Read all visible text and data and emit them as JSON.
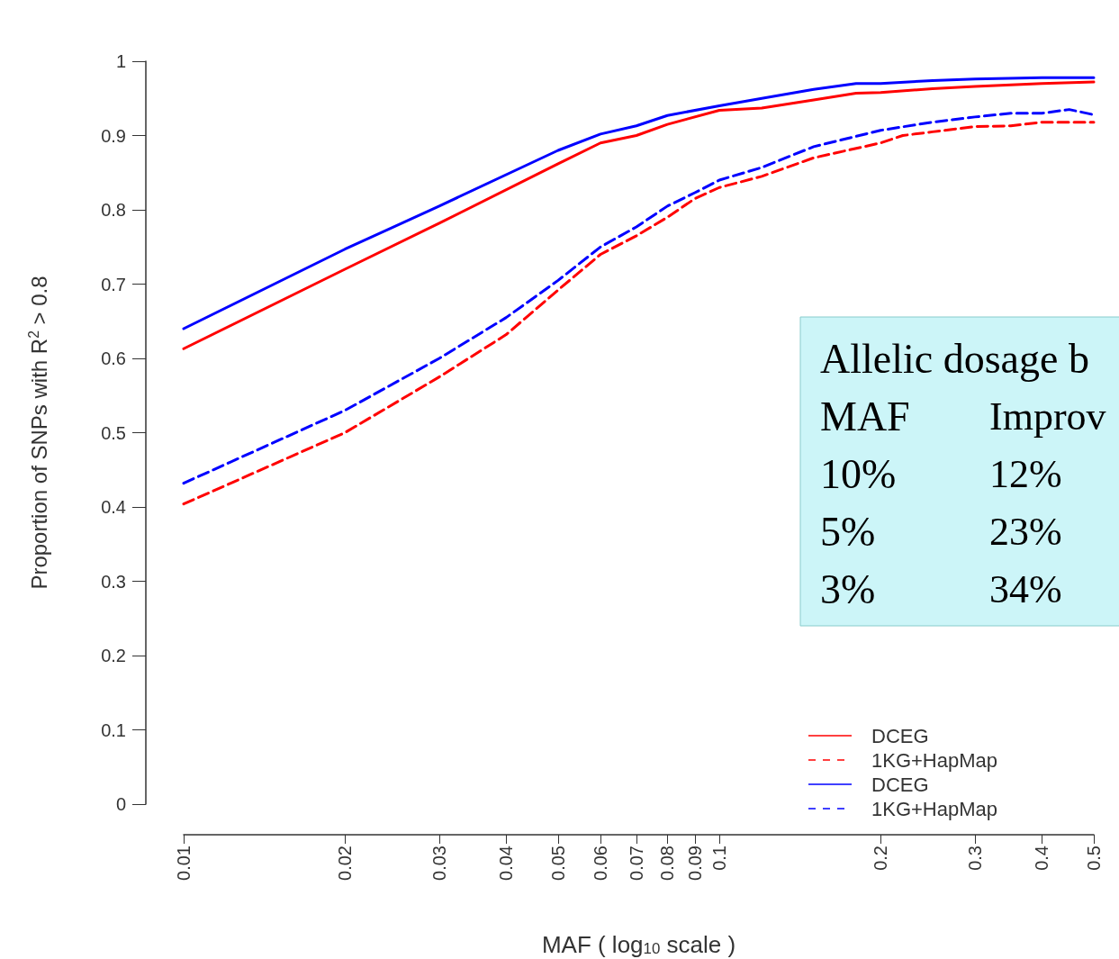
{
  "chart_data": {
    "type": "line",
    "xlabel": "MAF ( log$_{10}$ scale )",
    "ylabel": "Proportion of SNPs with R$^{2}$ > 0.8",
    "log": "x",
    "xlim": [
      0.01,
      0.5
    ],
    "xticks": [
      0.01,
      0.02,
      0.03,
      0.04,
      0.05,
      0.06,
      0.07,
      0.08,
      0.09,
      0.1,
      0.2,
      0.3,
      0.4,
      0.5
    ],
    "ylim": [
      0,
      1
    ],
    "yticks": [
      0,
      0.1,
      0.2,
      0.3,
      0.4,
      0.5,
      0.6,
      0.7,
      0.8,
      0.9,
      1
    ],
    "grid": false,
    "marker": "none",
    "legend": "bottom right",
    "series": [
      {
        "name": "DCEG",
        "color": "#ff0000",
        "line_style": "solid",
        "x": [
          0.01,
          0.02,
          0.03,
          0.05,
          0.06,
          0.07,
          0.08,
          0.1,
          0.12,
          0.15,
          0.18,
          0.2,
          0.25,
          0.3,
          0.4,
          0.5
        ],
        "values": [
          0.613,
          0.72,
          0.782,
          0.862,
          0.89,
          0.9,
          0.915,
          0.934,
          0.937,
          0.948,
          0.957,
          0.958,
          0.963,
          0.966,
          0.97,
          0.972
        ]
      },
      {
        "name": "1KG+HapMap",
        "color": "#ff0000",
        "line_style": "dashed",
        "x": [
          0.01,
          0.02,
          0.03,
          0.04,
          0.05,
          0.06,
          0.07,
          0.08,
          0.09,
          0.1,
          0.12,
          0.15,
          0.2,
          0.22,
          0.25,
          0.3,
          0.35,
          0.4,
          0.5
        ],
        "values": [
          0.404,
          0.5,
          0.575,
          0.632,
          0.692,
          0.74,
          0.765,
          0.79,
          0.815,
          0.83,
          0.845,
          0.87,
          0.89,
          0.9,
          0.905,
          0.912,
          0.913,
          0.918,
          0.918
        ]
      },
      {
        "name": "DCEG",
        "color": "#0000ff",
        "line_style": "solid",
        "x": [
          0.01,
          0.02,
          0.03,
          0.05,
          0.06,
          0.07,
          0.08,
          0.1,
          0.12,
          0.15,
          0.18,
          0.2,
          0.25,
          0.3,
          0.4,
          0.5
        ],
        "values": [
          0.64,
          0.747,
          0.805,
          0.88,
          0.902,
          0.913,
          0.927,
          0.94,
          0.95,
          0.962,
          0.97,
          0.97,
          0.974,
          0.976,
          0.978,
          0.978
        ]
      },
      {
        "name": "1KG+HapMap",
        "color": "#0000ff",
        "line_style": "dashed",
        "x": [
          0.01,
          0.02,
          0.03,
          0.04,
          0.05,
          0.06,
          0.07,
          0.08,
          0.09,
          0.1,
          0.12,
          0.15,
          0.2,
          0.25,
          0.3,
          0.35,
          0.4,
          0.45,
          0.5
        ],
        "values": [
          0.432,
          0.53,
          0.6,
          0.655,
          0.705,
          0.75,
          0.777,
          0.805,
          0.823,
          0.84,
          0.857,
          0.885,
          0.907,
          0.918,
          0.925,
          0.93,
          0.93,
          0.935,
          0.928
        ]
      }
    ],
    "annotations": [
      "Allelic dosage b",
      "MAF",
      "Improv",
      "10%",
      "12%",
      "5%",
      "23%",
      "3%",
      "34%"
    ]
  }
}
